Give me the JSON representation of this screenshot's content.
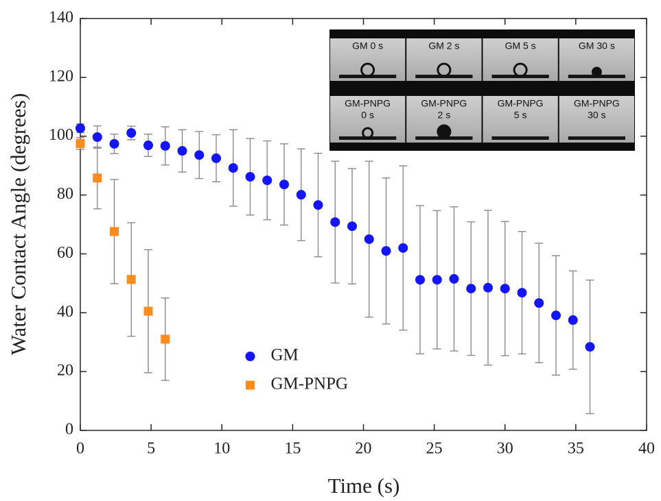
{
  "chart_data": {
    "type": "scatter",
    "xlabel": "Time (s)",
    "ylabel": "Water Contact Angle (degrees)",
    "xlim": [
      0,
      40
    ],
    "ylim": [
      0,
      140
    ],
    "xticks": [
      0,
      5,
      10,
      15,
      20,
      25,
      30,
      35,
      40
    ],
    "yticks": [
      0,
      20,
      40,
      60,
      80,
      100,
      120,
      140
    ],
    "legend": "lower center",
    "series": [
      {
        "name": "GM",
        "color": "#1414ff",
        "marker": "circle",
        "x": [
          0,
          1.2,
          2.4,
          3.6,
          4.8,
          6.0,
          7.2,
          8.4,
          9.6,
          10.8,
          12,
          13.2,
          14.4,
          15.6,
          16.8,
          18,
          19.2,
          20.4,
          21.6,
          22.8,
          24,
          25.2,
          26.4,
          27.6,
          28.8,
          30,
          31.2,
          32.4,
          33.6,
          34.8,
          36
        ],
        "values": [
          102.7,
          99.7,
          97.4,
          101.1,
          96.9,
          96.7,
          95.0,
          93.6,
          92.5,
          89.2,
          86.2,
          85.0,
          83.6,
          80.1,
          76.6,
          70.8,
          69.4,
          65.0,
          61.0,
          62.0,
          51.2,
          51.2,
          51.5,
          48.2,
          48.5,
          48.2,
          46.8,
          43.3,
          39.1,
          37.5,
          28.4
        ],
        "errors": [
          1.5,
          3.8,
          3.3,
          2.3,
          3.8,
          6.5,
          7.2,
          8,
          8,
          13,
          13,
          13.4,
          13.8,
          15.6,
          17.6,
          20.7,
          19.6,
          26.5,
          24.8,
          27.9,
          25.2,
          23.5,
          24.5,
          22.7,
          26.3,
          22.8,
          20.8,
          20.3,
          20.3,
          16.7,
          22.7
        ]
      },
      {
        "name": "GM-PNPG",
        "color": "#ff8c1a",
        "marker": "square",
        "x": [
          0,
          1.2,
          2.4,
          3.6,
          4.8,
          6.0
        ],
        "values": [
          97.5,
          85.8,
          67.6,
          51.3,
          40.5,
          31.0
        ],
        "errors": [
          2,
          10.5,
          17.7,
          19.3,
          20.9,
          14
        ]
      }
    ],
    "inset": {
      "rows": [
        [
          [
            "GM  0 s"
          ],
          [
            "GM  2 s"
          ],
          [
            "GM  5 s"
          ],
          [
            "GM  30 s"
          ]
        ],
        [
          [
            "GM-PNPG",
            "0 s"
          ],
          [
            "GM-PNPG",
            "2 s"
          ],
          [
            "GM-PNPG",
            "5 s"
          ],
          [
            "GM-PNPG",
            "30 s"
          ]
        ]
      ]
    }
  }
}
